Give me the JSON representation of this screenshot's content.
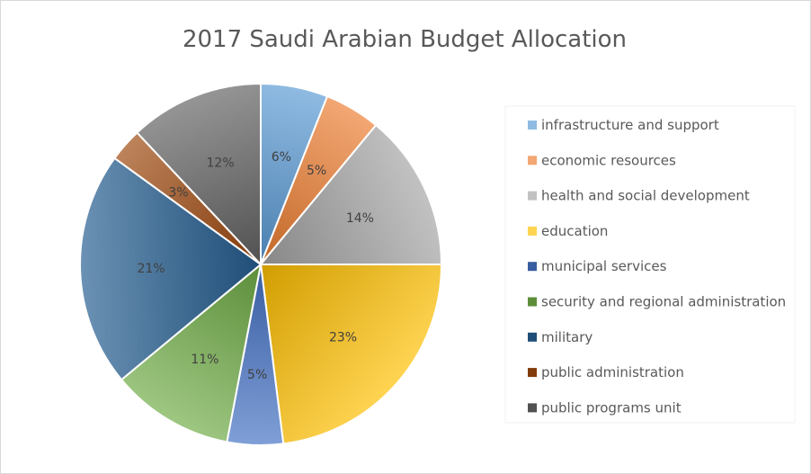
{
  "chart_data": {
    "type": "pie",
    "title": "2017 Saudi Arabian Budget Allocation",
    "legend_position": "right",
    "slices": [
      {
        "label": "infrastructure and support",
        "value": 6,
        "display": "6%",
        "color": "#5b9bd5"
      },
      {
        "label": "economic resources",
        "value": 5,
        "display": "5%",
        "color": "#ed7d31"
      },
      {
        "label": "health and social development",
        "value": 14,
        "display": "14%",
        "color": "#a5a5a5"
      },
      {
        "label": "education",
        "value": 23,
        "display": "23%",
        "color": "#ffc000"
      },
      {
        "label": "municipal services",
        "value": 5,
        "display": "5%",
        "color": "#4472c4"
      },
      {
        "label": "security and regional administration",
        "value": 11,
        "display": "11%",
        "color": "#70ad47"
      },
      {
        "label": "military",
        "value": 21,
        "display": "21%",
        "color": "#255e91"
      },
      {
        "label": "public administration",
        "value": 3,
        "display": "3%",
        "color": "#9e480e"
      },
      {
        "label": "public programs unit",
        "value": 12,
        "display": "12%",
        "color": "#636363"
      }
    ]
  }
}
